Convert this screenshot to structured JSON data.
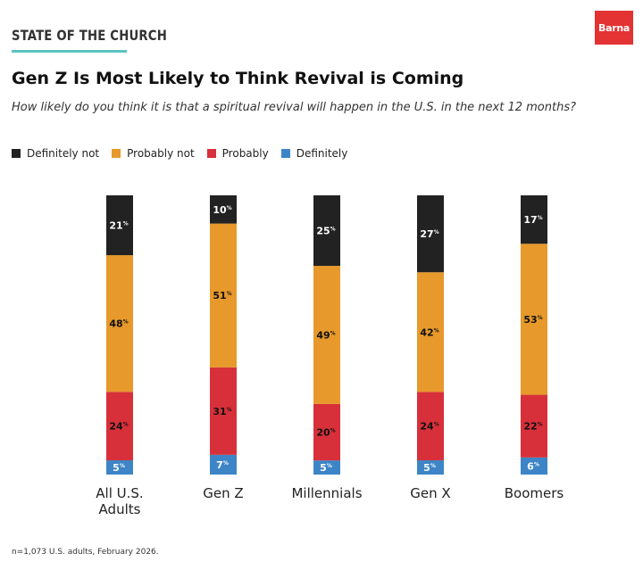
{
  "header": {
    "brand": "STATE OF THE CHURCH",
    "logo": "Barna",
    "title": "Gen Z Is Most Likely to Think Revival is Coming",
    "subtitle": "How likely do you think it is that a spiritual revival will happen in the U.S. in the next 12 months?"
  },
  "colors": {
    "definitely_not": "#222222",
    "probably_not": "#e7992b",
    "probably": "#d7303a",
    "definitely": "#3d85c6",
    "accent_line": "#5cc2c2",
    "logo_bg": "#e33333"
  },
  "legend": [
    {
      "label": "Definitely not",
      "color": "#222222"
    },
    {
      "label": "Probably not",
      "color": "#e7992b"
    },
    {
      "label": "Probably",
      "color": "#d7303a"
    },
    {
      "label": "Definitely",
      "color": "#3d85c6"
    }
  ],
  "chart_data": {
    "type": "bar",
    "stacked": true,
    "unit": "%",
    "categories": [
      [
        "All U.S.",
        "Adults"
      ],
      [
        "Gen Z"
      ],
      [
        "Millennials"
      ],
      [
        "Gen X"
      ],
      [
        "Boomers"
      ]
    ],
    "series": [
      {
        "name": "Definitely",
        "values": [
          5,
          7,
          5,
          5,
          6
        ]
      },
      {
        "name": "Probably",
        "values": [
          24,
          31,
          20,
          24,
          22
        ]
      },
      {
        "name": "Probably not",
        "values": [
          48,
          51,
          49,
          42,
          53
        ]
      },
      {
        "name": "Definitely not",
        "values": [
          21,
          10,
          25,
          27,
          17
        ]
      }
    ],
    "ylim": [
      0,
      100
    ],
    "title": "Gen Z Is Most Likely to Think Revival is Coming"
  },
  "footnote": "n=1,073 U.S. adults, February 2026."
}
